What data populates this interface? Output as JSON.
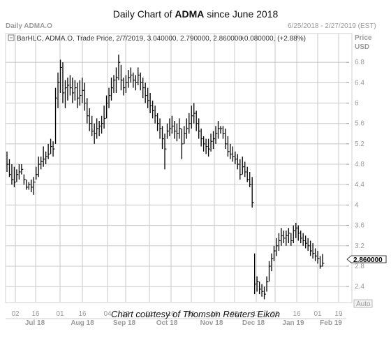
{
  "title": {
    "prefix": "Daily Chart of ",
    "ticker": "ADMA",
    "suffix": " since June 2018"
  },
  "caption": "Chart courtesy of Thomson Reuters Eikon",
  "panel": {
    "name": "Daily ADMA.O",
    "range": "6/25/2018 - 2/27/2019 (EST)",
    "price_label": "Price",
    "currency": "USD",
    "auto": "Auto"
  },
  "legend": {
    "series": "BarHLC, ADMA.O, Trade Price, 2/7/2019, 3.040000, 2.790000, 2.860000,",
    "change": "+0.080000, (+2.88%)"
  },
  "last_price": "2.860000",
  "colors": {
    "bars": "#000000",
    "grid": "#c8c8c8",
    "up": "#2aa52a"
  },
  "chart_data": {
    "type": "bar",
    "ylim": [
      2.1,
      7.2
    ],
    "yticks": [
      2.4,
      2.8,
      3.2,
      3.6,
      4,
      4.4,
      4.8,
      5.2,
      5.6,
      6,
      6.4,
      6.8
    ],
    "ytick_labels": [
      "2.4",
      "2.8",
      "3.2",
      "3.6",
      "4",
      "4.4",
      "4.8",
      "5.2",
      "5.6",
      "6",
      "6.4",
      "6.8"
    ],
    "grid": true,
    "day_labels": [
      "02",
      "16",
      "01",
      "16",
      "04",
      "17",
      "01",
      "16",
      "01",
      "16",
      "03",
      "17",
      "02",
      "16",
      "01",
      "19"
    ],
    "month_labels": [
      "Jul 18",
      "Aug 18",
      "Sep 18",
      "Oct 18",
      "Nov 18",
      "Dec 18",
      "Jan 19",
      "Feb 19"
    ],
    "bars": [
      [
        4.65,
        5.05,
        4.8
      ],
      [
        4.55,
        4.9,
        4.6
      ],
      [
        4.4,
        4.8,
        4.5
      ],
      [
        4.35,
        4.75,
        4.45
      ],
      [
        4.45,
        4.7,
        4.6
      ],
      [
        4.5,
        4.8,
        4.65
      ],
      [
        4.6,
        4.8,
        4.7
      ],
      [
        4.4,
        4.6,
        4.5
      ],
      [
        4.3,
        4.5,
        4.35
      ],
      [
        4.3,
        4.45,
        4.4
      ],
      [
        4.25,
        4.5,
        4.35
      ],
      [
        4.2,
        4.55,
        4.45
      ],
      [
        4.5,
        4.75,
        4.6
      ],
      [
        4.55,
        4.95,
        4.8
      ],
      [
        4.7,
        4.95,
        4.85
      ],
      [
        4.75,
        5.15,
        4.9
      ],
      [
        4.8,
        5.05,
        4.95
      ],
      [
        4.9,
        5.2,
        5.0
      ],
      [
        5.0,
        5.3,
        5.15
      ],
      [
        4.95,
        5.25,
        5.1
      ],
      [
        5.2,
        6.3,
        6.1
      ],
      [
        5.9,
        6.6,
        6.4
      ],
      [
        6.2,
        6.85,
        6.7
      ],
      [
        6.0,
        6.8,
        6.2
      ],
      [
        5.9,
        6.45,
        6.3
      ],
      [
        6.05,
        6.5,
        6.35
      ],
      [
        6.15,
        6.55,
        6.3
      ],
      [
        6.0,
        6.5,
        6.2
      ],
      [
        6.05,
        6.45,
        6.3
      ],
      [
        5.9,
        6.4,
        6.1
      ],
      [
        5.95,
        6.45,
        6.15
      ],
      [
        6.0,
        6.5,
        6.25
      ],
      [
        5.85,
        6.4,
        6.0
      ],
      [
        5.6,
        6.1,
        5.75
      ],
      [
        5.45,
        5.9,
        5.6
      ],
      [
        5.35,
        5.75,
        5.45
      ],
      [
        5.2,
        5.6,
        5.4
      ],
      [
        5.3,
        5.7,
        5.5
      ],
      [
        5.35,
        5.65,
        5.55
      ],
      [
        5.4,
        5.75,
        5.6
      ],
      [
        5.5,
        5.95,
        5.7
      ],
      [
        5.7,
        6.15,
        6.0
      ],
      [
        5.9,
        6.3,
        6.15
      ],
      [
        6.05,
        6.5,
        6.3
      ],
      [
        6.2,
        6.55,
        6.45
      ],
      [
        6.2,
        6.7,
        6.5
      ],
      [
        6.45,
        6.95,
        6.8
      ],
      [
        6.25,
        6.75,
        6.45
      ],
      [
        6.15,
        6.5,
        6.3
      ],
      [
        6.2,
        6.55,
        6.4
      ],
      [
        6.3,
        6.65,
        6.5
      ],
      [
        6.4,
        6.7,
        6.55
      ],
      [
        6.3,
        6.6,
        6.45
      ],
      [
        6.25,
        6.55,
        6.4
      ],
      [
        6.35,
        6.7,
        6.55
      ],
      [
        6.25,
        6.6,
        6.4
      ],
      [
        6.1,
        6.5,
        6.3
      ],
      [
        6.0,
        6.4,
        6.15
      ],
      [
        5.9,
        6.3,
        6.05
      ],
      [
        5.8,
        6.2,
        5.95
      ],
      [
        5.7,
        6.05,
        5.85
      ],
      [
        5.6,
        5.95,
        5.75
      ],
      [
        5.45,
        5.8,
        5.6
      ],
      [
        5.3,
        5.7,
        5.5
      ],
      [
        5.1,
        5.55,
        5.3
      ],
      [
        4.7,
        5.4,
        5.1
      ],
      [
        5.3,
        5.6,
        5.45
      ],
      [
        5.35,
        5.7,
        5.5
      ],
      [
        5.4,
        5.75,
        5.55
      ],
      [
        5.3,
        5.65,
        5.45
      ],
      [
        5.25,
        5.6,
        5.4
      ],
      [
        5.3,
        5.7,
        5.5
      ],
      [
        4.9,
        5.5,
        5.2
      ],
      [
        5.2,
        5.55,
        5.4
      ],
      [
        5.3,
        5.7,
        5.5
      ],
      [
        5.4,
        5.8,
        5.6
      ],
      [
        5.5,
        5.95,
        5.75
      ],
      [
        5.6,
        6.0,
        5.8
      ],
      [
        5.45,
        5.85,
        5.6
      ],
      [
        5.3,
        5.7,
        5.45
      ],
      [
        5.15,
        5.5,
        5.3
      ],
      [
        5.05,
        5.35,
        5.2
      ],
      [
        5.0,
        5.3,
        5.15
      ],
      [
        4.95,
        5.3,
        5.1
      ],
      [
        5.05,
        5.4,
        5.25
      ],
      [
        5.1,
        5.45,
        5.3
      ],
      [
        5.2,
        5.55,
        5.4
      ],
      [
        5.3,
        5.65,
        5.5
      ],
      [
        5.4,
        5.55,
        5.5
      ],
      [
        5.3,
        5.55,
        5.4
      ],
      [
        5.1,
        5.5,
        5.2
      ],
      [
        4.95,
        5.35,
        5.05
      ],
      [
        4.9,
        5.2,
        5.0
      ],
      [
        4.85,
        5.15,
        4.95
      ],
      [
        4.8,
        5.05,
        4.9
      ],
      [
        4.7,
        5.0,
        4.8
      ],
      [
        4.5,
        4.9,
        4.6
      ],
      [
        4.6,
        4.95,
        4.75
      ],
      [
        4.55,
        4.85,
        4.65
      ],
      [
        4.45,
        4.75,
        4.5
      ],
      [
        4.35,
        4.65,
        4.4
      ],
      [
        3.95,
        4.55,
        4.05
      ],
      [
        2.25,
        3.05,
        2.45
      ],
      [
        2.3,
        2.6,
        2.5
      ],
      [
        2.25,
        2.5,
        2.35
      ],
      [
        2.2,
        2.45,
        2.3
      ],
      [
        2.15,
        2.4,
        2.25
      ],
      [
        2.3,
        2.6,
        2.5
      ],
      [
        2.5,
        2.9,
        2.8
      ],
      [
        2.7,
        3.05,
        2.95
      ],
      [
        2.9,
        3.2,
        3.1
      ],
      [
        3.0,
        3.35,
        3.2
      ],
      [
        3.1,
        3.45,
        3.3
      ],
      [
        3.2,
        3.55,
        3.4
      ],
      [
        3.25,
        3.5,
        3.35
      ],
      [
        3.2,
        3.5,
        3.4
      ],
      [
        3.25,
        3.55,
        3.45
      ],
      [
        3.2,
        3.45,
        3.3
      ],
      [
        3.25,
        3.6,
        3.5
      ],
      [
        3.35,
        3.65,
        3.55
      ],
      [
        3.3,
        3.6,
        3.45
      ],
      [
        3.25,
        3.5,
        3.35
      ],
      [
        3.2,
        3.45,
        3.3
      ],
      [
        3.15,
        3.4,
        3.25
      ],
      [
        3.1,
        3.35,
        3.2
      ],
      [
        3.0,
        3.3,
        3.1
      ],
      [
        2.95,
        3.25,
        3.05
      ],
      [
        2.9,
        3.15,
        3.0
      ],
      [
        2.85,
        3.1,
        2.95
      ],
      [
        2.75,
        3.0,
        2.8
      ],
      [
        2.79,
        3.04,
        2.86
      ]
    ]
  }
}
